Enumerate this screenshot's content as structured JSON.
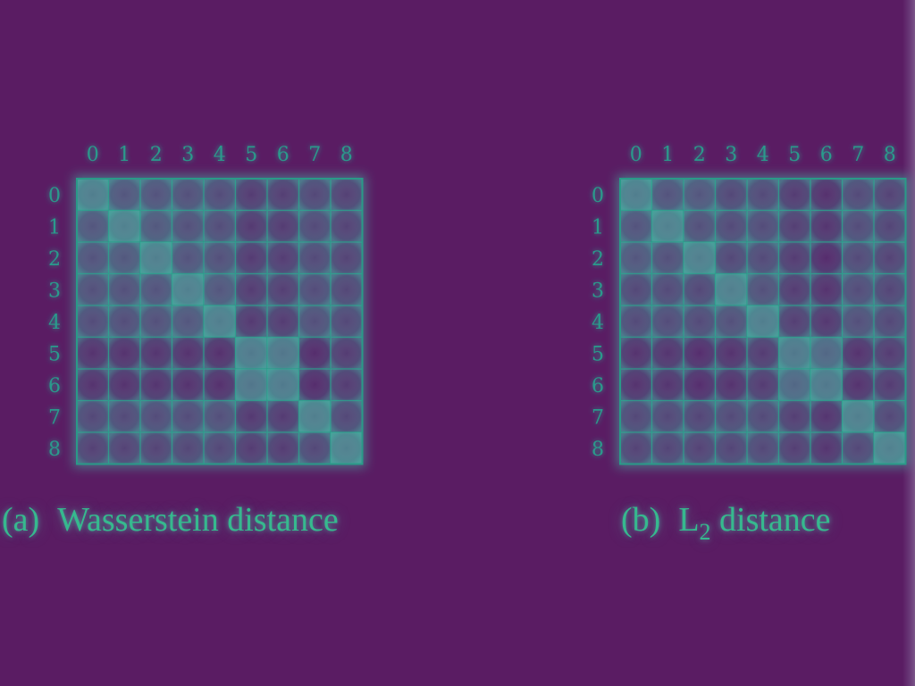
{
  "chart_data": [
    {
      "type": "heatmap",
      "title": "",
      "caption": {
        "tag": "(a)",
        "text": "Wasserstein distance"
      },
      "x_categories": [
        "0",
        "1",
        "2",
        "3",
        "4",
        "5",
        "6",
        "7",
        "8"
      ],
      "y_categories": [
        "0",
        "1",
        "2",
        "3",
        "4",
        "5",
        "6",
        "7",
        "8"
      ],
      "scale_range": [
        0,
        1
      ],
      "values": [
        [
          0.15,
          0.5,
          0.52,
          0.55,
          0.58,
          0.72,
          0.7,
          0.62,
          0.68
        ],
        [
          0.5,
          0.12,
          0.48,
          0.55,
          0.57,
          0.74,
          0.72,
          0.6,
          0.66
        ],
        [
          0.52,
          0.48,
          0.14,
          0.52,
          0.55,
          0.73,
          0.71,
          0.6,
          0.65
        ],
        [
          0.55,
          0.55,
          0.52,
          0.13,
          0.5,
          0.72,
          0.7,
          0.58,
          0.63
        ],
        [
          0.58,
          0.57,
          0.55,
          0.5,
          0.15,
          0.74,
          0.72,
          0.56,
          0.62
        ],
        [
          0.8,
          0.8,
          0.78,
          0.8,
          0.82,
          0.18,
          0.22,
          0.85,
          0.72
        ],
        [
          0.8,
          0.8,
          0.78,
          0.8,
          0.82,
          0.22,
          0.18,
          0.85,
          0.72
        ],
        [
          0.62,
          0.6,
          0.58,
          0.58,
          0.56,
          0.75,
          0.73,
          0.14,
          0.62
        ],
        [
          0.68,
          0.66,
          0.65,
          0.63,
          0.62,
          0.72,
          0.72,
          0.62,
          0.12
        ]
      ]
    },
    {
      "type": "heatmap",
      "title": "",
      "caption": {
        "tag": "(b)",
        "text": "L",
        "subscript": "2",
        "text_after": " distance"
      },
      "x_categories": [
        "0",
        "1",
        "2",
        "3",
        "4",
        "5",
        "6",
        "7",
        "8"
      ],
      "y_categories": [
        "0",
        "1",
        "2",
        "3",
        "4",
        "5",
        "6",
        "7",
        "8"
      ],
      "scale_range": [
        0,
        1
      ],
      "values": [
        [
          0.15,
          0.52,
          0.5,
          0.62,
          0.6,
          0.72,
          0.82,
          0.6,
          0.66
        ],
        [
          0.52,
          0.12,
          0.55,
          0.6,
          0.58,
          0.7,
          0.78,
          0.58,
          0.64
        ],
        [
          0.5,
          0.55,
          0.14,
          0.62,
          0.6,
          0.72,
          0.86,
          0.6,
          0.66
        ],
        [
          0.62,
          0.6,
          0.62,
          0.14,
          0.55,
          0.72,
          0.8,
          0.58,
          0.64
        ],
        [
          0.6,
          0.58,
          0.6,
          0.55,
          0.15,
          0.7,
          0.76,
          0.56,
          0.62
        ],
        [
          0.8,
          0.78,
          0.84,
          0.8,
          0.72,
          0.2,
          0.35,
          0.8,
          0.72
        ],
        [
          0.8,
          0.78,
          0.84,
          0.8,
          0.72,
          0.35,
          0.2,
          0.8,
          0.72
        ],
        [
          0.62,
          0.62,
          0.64,
          0.6,
          0.6,
          0.7,
          0.78,
          0.14,
          0.62
        ],
        [
          0.66,
          0.64,
          0.66,
          0.64,
          0.62,
          0.7,
          0.78,
          0.62,
          0.12
        ]
      ]
    }
  ],
  "colors": {
    "background": "#5a1c63",
    "low": "#4f8f95",
    "high": "#561c66",
    "grid_line": "#2a9a88",
    "glow": "#3fd6b0",
    "label": "#2c9a8c",
    "caption": "#36b98e"
  }
}
